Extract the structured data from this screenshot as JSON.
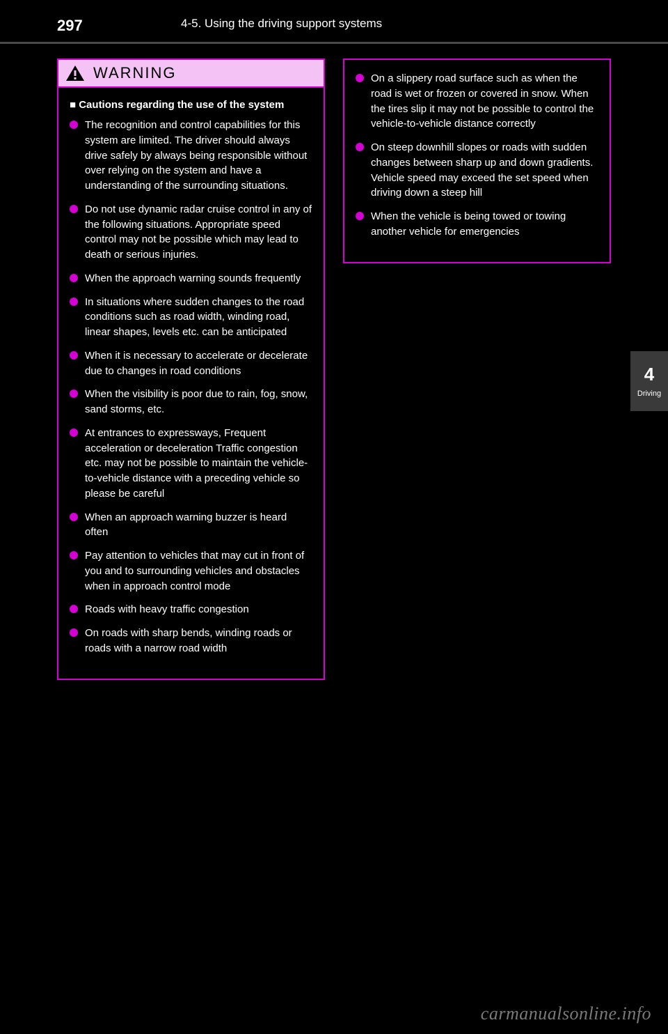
{
  "page_number": "297",
  "header_text": "4-5. Using the driving support systems",
  "side_tab": {
    "num": "4",
    "label": "Driving"
  },
  "warning_title": "WARNING",
  "left_subhead": "■ Cautions regarding the use of the system",
  "left_bullets": [
    "The recognition and control capabilities for this system are limited. The driver should always drive safely by always being responsible without over relying on the system and have a understanding of the surrounding situations.",
    "Do not use dynamic radar cruise control in any of the following situations. Appropriate speed control may not be possible which may lead to death or serious injuries.",
    "When the approach warning sounds frequently",
    "In situations where sudden changes to the road conditions such as road width, winding road, linear shapes, levels etc. can be anticipated",
    "When it is necessary to accelerate or decelerate due to changes in road conditions",
    "When the visibility is poor due to rain, fog, snow, sand storms, etc.",
    "At entrances to expressways, Frequent acceleration or deceleration Traffic congestion etc. may not be possible to maintain the vehicle-to-vehicle distance with a preceding vehicle so please be careful",
    "When an approach warning buzzer is heard often",
    "Pay attention to vehicles that may cut in front of you and to surrounding vehicles and obstacles when in approach control mode",
    "Roads with heavy traffic congestion",
    "On roads with sharp bends, winding roads or roads with a narrow road width"
  ],
  "right_bullets": [
    "On a slippery road surface such as when the road is wet or frozen or covered in snow. When the tires slip it may not be possible to control the vehicle-to-vehicle distance correctly",
    "On steep downhill slopes or roads with sudden changes between sharp up and down gradients. Vehicle speed may exceed the set speed when driving down a steep hill",
    "When the vehicle is being towed or towing another vehicle for emergencies"
  ],
  "watermark": "carmanualsonline.info",
  "colors": {
    "accent": "#d400d4",
    "header_fill": "#f5c2f5",
    "page_bg": "#000000",
    "text": "#ffffff",
    "sidebar_bg": "#3a3a3a",
    "divider": "#4a4a4a",
    "watermark": "#7a7a7a"
  }
}
